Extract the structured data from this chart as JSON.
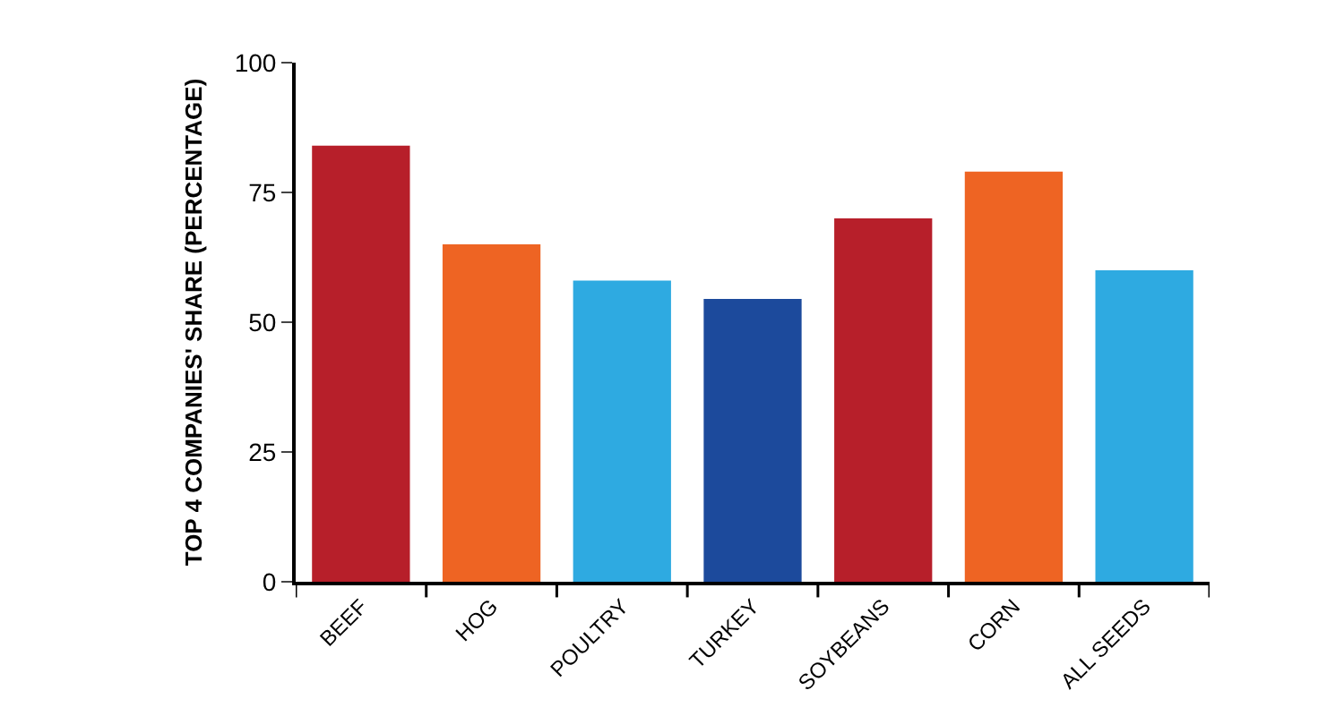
{
  "chart_data": {
    "type": "bar",
    "ylabel": "TOP 4 COMPANIES' SHARE (PERCENTAGE)",
    "categories": [
      "BEEF",
      "HOG",
      "POULTRY",
      "TURKEY",
      "SOYBEANS",
      "CORN",
      "ALL SEEDS"
    ],
    "values": [
      84,
      65,
      58,
      54.5,
      70,
      79,
      60
    ],
    "colors": [
      "#b71f2a",
      "#ee6423",
      "#2eaae1",
      "#1c4a9c",
      "#b71f2a",
      "#ee6423",
      "#2eaae1"
    ],
    "ylim": [
      0,
      100
    ],
    "yticks": [
      0,
      25,
      50,
      75,
      100
    ]
  }
}
